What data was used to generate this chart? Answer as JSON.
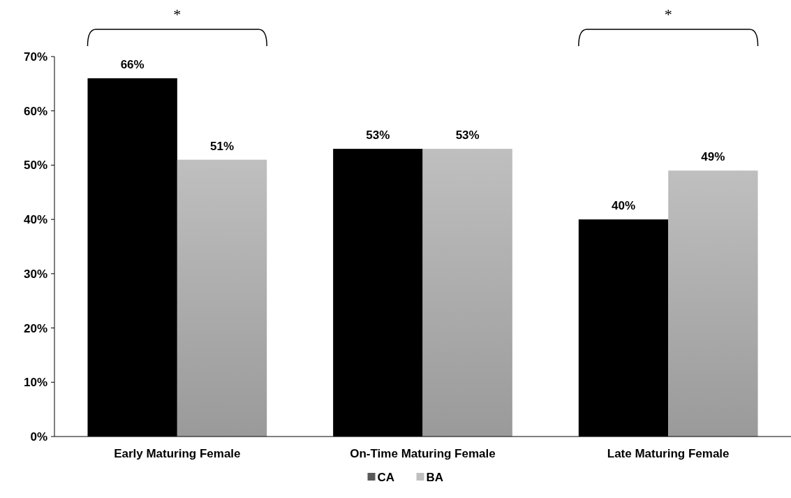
{
  "chart_data": {
    "type": "bar",
    "categories": [
      "Early Maturing Female",
      "On-Time Maturing Female",
      "Late Maturing Female"
    ],
    "series": [
      {
        "name": "CA",
        "color": "#000000",
        "values": [
          66,
          53,
          40
        ]
      },
      {
        "name": "BA",
        "color": "#bfbfbf",
        "values": [
          51,
          53,
          49
        ]
      }
    ],
    "ylim": [
      0,
      70
    ],
    "yticks": [
      {
        "value": 0,
        "label": "0%"
      },
      {
        "value": 10,
        "label": "10%"
      },
      {
        "value": 20,
        "label": "20%"
      },
      {
        "value": 30,
        "label": "30%"
      },
      {
        "value": 40,
        "label": "40%"
      },
      {
        "value": 50,
        "label": "50%"
      },
      {
        "value": 60,
        "label": "60%"
      },
      {
        "value": 70,
        "label": "70%"
      }
    ],
    "value_labels": [
      [
        "66%",
        "53%",
        "40%"
      ],
      [
        "51%",
        "53%",
        "49%"
      ]
    ],
    "annotations": [
      "*",
      "*"
    ],
    "legend": "bottom",
    "grid": false
  }
}
